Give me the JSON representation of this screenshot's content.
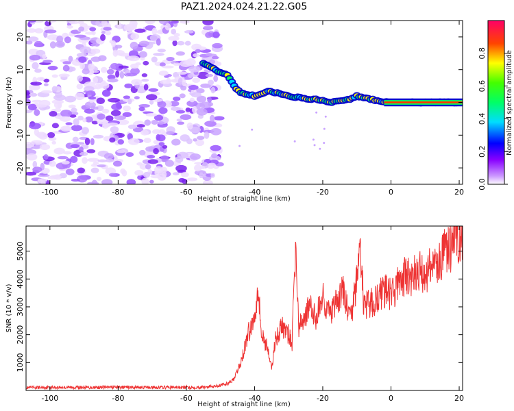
{
  "title": "PAZ1.2024.024.21.22.G05",
  "chart_data": [
    {
      "type": "heatmap",
      "xlabel": "Height of straight line (km)",
      "ylabel": "Frequency (Hz)",
      "xlim": [
        -107,
        21
      ],
      "ylim": [
        -25,
        25
      ],
      "xticks": [
        -100,
        -80,
        -60,
        -40,
        -20,
        0,
        20
      ],
      "yticks": [
        -20,
        -10,
        0,
        10,
        20
      ],
      "colorbar": {
        "label": "Normalized spectral amplitude",
        "range": [
          0.0,
          1.0
        ],
        "ticks": [
          0.0,
          0.2,
          0.4,
          0.6,
          0.8
        ],
        "colormap": "gist_rainbow_r"
      },
      "noise_region_x": [
        -107,
        -50
      ],
      "signal_track": {
        "x": [
          -55,
          -52,
          -50,
          -48,
          -46,
          -44,
          -42,
          -40,
          -38,
          -36,
          -34,
          -32,
          -30,
          -28,
          -26,
          -24,
          -22,
          -20,
          -18,
          -16,
          -14,
          -12,
          -10,
          -8,
          -6,
          -4,
          -2,
          0,
          5,
          10,
          15,
          21
        ],
        "freq": [
          12,
          10.5,
          9,
          8.5,
          5,
          3,
          2.5,
          2,
          2.5,
          3.5,
          3,
          2.5,
          2,
          1.5,
          1.5,
          1,
          1,
          0.5,
          0,
          0.5,
          0.5,
          1,
          2,
          1.5,
          1,
          0.5,
          0.3,
          0,
          0,
          0,
          0,
          0
        ]
      }
    },
    {
      "type": "line",
      "xlabel": "Height of straight line (km)",
      "ylabel": "SNR (10 * v/v)",
      "xlim": [
        -107,
        21
      ],
      "ylim": [
        0,
        5900
      ],
      "xticks": [
        -100,
        -80,
        -60,
        -40,
        -20,
        0,
        20
      ],
      "yticks": [
        1000,
        2000,
        3000,
        4000,
        5000
      ],
      "series": [
        {
          "color": "#ee3333",
          "x": [
            -107,
            -100,
            -90,
            -80,
            -70,
            -60,
            -55,
            -50,
            -48,
            -46,
            -44,
            -42,
            -40,
            -39,
            -38,
            -36,
            -35,
            -34,
            -32,
            -30,
            -29,
            -28,
            -27,
            -26,
            -24,
            -22,
            -20,
            -18,
            -16,
            -14,
            -12,
            -10,
            -9,
            -8,
            -6,
            -4,
            -2,
            0,
            2,
            4,
            6,
            8,
            10,
            12,
            14,
            16,
            18,
            20,
            21
          ],
          "y": [
            100,
            110,
            110,
            115,
            110,
            110,
            120,
            180,
            250,
            400,
            1000,
            2000,
            2600,
            3900,
            2000,
            1500,
            700,
            1800,
            2300,
            2000,
            1700,
            5200,
            2200,
            2500,
            3000,
            2600,
            3400,
            2700,
            3100,
            3600,
            2500,
            3900,
            5300,
            3000,
            3100,
            3300,
            3600,
            3400,
            3800,
            4100,
            4000,
            4300,
            4100,
            4600,
            4500,
            5000,
            5200,
            5600,
            5700
          ]
        }
      ]
    }
  ]
}
